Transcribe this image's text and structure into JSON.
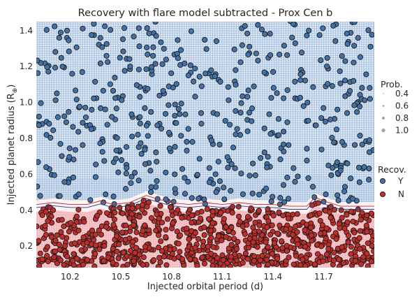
{
  "chart_data": {
    "type": "scatter",
    "title": "Recovery with flare model subtracted - Prox Cen b",
    "xlabel": "Injected orbital period (d)",
    "ylabel": "Injected planet radius (R",
    "ylabel_subscript": "⊕",
    "ylabel_close": ")",
    "xlim": [
      10.0,
      12.0
    ],
    "ylim": [
      0.08,
      1.45
    ],
    "xticks": [
      10.2,
      10.5,
      10.8,
      11.1,
      11.4,
      11.7
    ],
    "xtick_labels": [
      "10.2",
      "10.5",
      "10.8",
      "11.1",
      "11.4",
      "11.7"
    ],
    "yticks": [
      0.2,
      0.4,
      0.6,
      0.8,
      1.0,
      1.2,
      1.4
    ],
    "ytick_labels": [
      "0.2",
      "0.4",
      "0.6",
      "0.8",
      "1.0",
      "1.2",
      "1.4"
    ],
    "grid": false,
    "background": {
      "type": "probability-map",
      "description_colors": {
        "recovered": "#aec6e2",
        "not_recovered": "#f4b9bd"
      },
      "boundary_radius": [
        [
          10.0,
          0.42
        ],
        [
          10.1,
          0.43
        ],
        [
          10.2,
          0.42
        ],
        [
          10.3,
          0.42
        ],
        [
          10.38,
          0.44
        ],
        [
          10.45,
          0.42
        ],
        [
          10.55,
          0.43
        ],
        [
          10.65,
          0.47
        ],
        [
          10.72,
          0.45
        ],
        [
          10.8,
          0.43
        ],
        [
          10.9,
          0.42
        ],
        [
          11.0,
          0.43
        ],
        [
          11.1,
          0.42
        ],
        [
          11.2,
          0.43
        ],
        [
          11.3,
          0.42
        ],
        [
          11.4,
          0.42
        ],
        [
          11.5,
          0.41
        ],
        [
          11.6,
          0.41
        ],
        [
          11.65,
          0.46
        ],
        [
          11.7,
          0.44
        ],
        [
          11.8,
          0.41
        ],
        [
          11.9,
          0.41
        ],
        [
          12.0,
          0.41
        ]
      ]
    },
    "series": [
      {
        "name": "Y",
        "color": "#4272a8",
        "region": "above",
        "count": 520
      },
      {
        "name": "N",
        "color": "#bf2e2a",
        "region": "below",
        "count": 900
      }
    ],
    "legend": {
      "prob": {
        "title": "Prob.",
        "entries": [
          "0.4",
          "0.6",
          "0.8",
          "1.0"
        ]
      },
      "recov": {
        "title": "Recov.",
        "entries": [
          "Y",
          "N"
        ]
      },
      "placement": "right"
    }
  }
}
